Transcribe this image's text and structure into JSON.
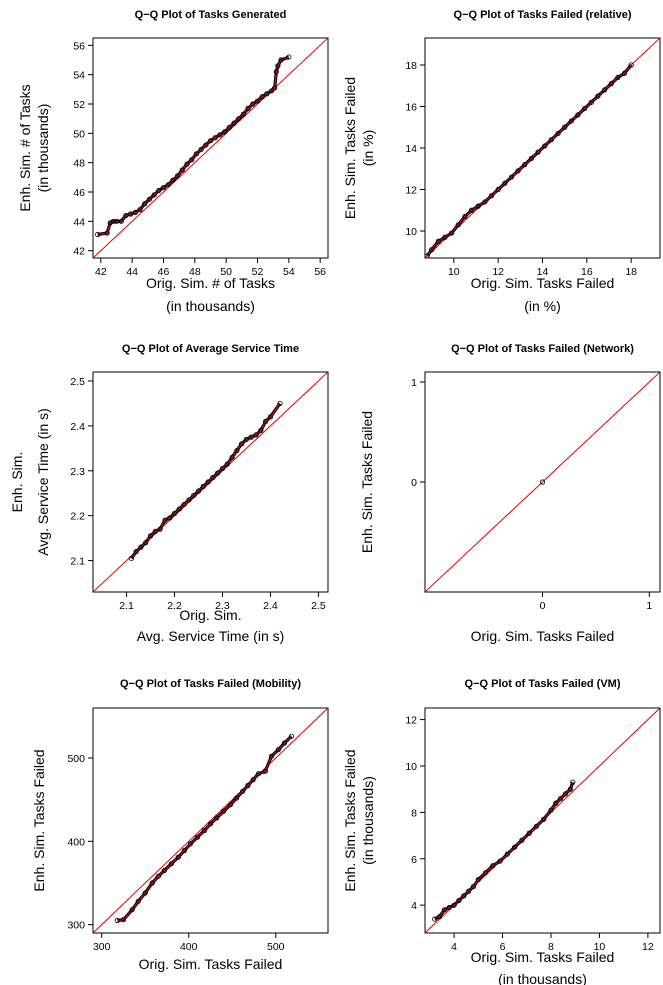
{
  "chart_data": [
    {
      "type": "scatter",
      "title": "Q−Q Plot of Tasks Generated",
      "xlabel": [
        "Orig. Sim. # of Tasks",
        "(in thousands)"
      ],
      "ylabel": [
        "Enh. Sim. # of Tasks",
        "(in thousands)"
      ],
      "xlim": [
        41.5,
        56.5
      ],
      "ylim": [
        41.5,
        56.5
      ],
      "xticks": [
        42,
        44,
        46,
        48,
        50,
        52,
        54,
        56
      ],
      "yticks": [
        42,
        44,
        46,
        48,
        50,
        52,
        54,
        56
      ],
      "reference_line": "y = x",
      "series": [
        {
          "x": [
            41.8,
            42.4,
            42.6,
            42.8,
            43.0,
            43.3,
            43.6,
            43.9,
            44.2,
            44.5,
            44.8,
            45.1,
            45.4,
            45.7,
            46.0,
            46.3,
            46.6,
            46.9,
            47.2,
            47.5,
            47.8,
            48.1,
            48.4,
            48.7,
            49.0,
            49.3,
            49.6,
            49.9,
            50.2,
            50.5,
            50.8,
            51.1,
            51.4,
            51.7,
            52.0,
            52.3,
            52.6,
            52.9,
            53.1,
            53.2,
            53.3,
            53.5,
            54.0
          ],
          "y": [
            43.1,
            43.2,
            43.9,
            44.0,
            44.0,
            44.0,
            44.4,
            44.5,
            44.6,
            44.8,
            45.2,
            45.5,
            45.8,
            46.1,
            46.3,
            46.5,
            46.8,
            47.1,
            47.5,
            47.9,
            48.2,
            48.6,
            48.9,
            49.2,
            49.5,
            49.7,
            49.9,
            50.1,
            50.4,
            50.7,
            51.0,
            51.3,
            51.7,
            52.0,
            52.2,
            52.5,
            52.7,
            52.9,
            53.1,
            54.2,
            54.6,
            55.0,
            55.2
          ]
        }
      ]
    },
    {
      "type": "scatter",
      "title": "Q−Q Plot of Tasks Failed (relative)",
      "xlabel": [
        "Orig. Sim. Tasks Failed",
        "(in %)"
      ],
      "ylabel": [
        "Enh. Sim. Tasks Failed",
        "(in %)"
      ],
      "xlim": [
        8.7,
        19.3
      ],
      "ylim": [
        8.7,
        19.3
      ],
      "xticks": [
        10,
        12,
        14,
        16,
        18
      ],
      "yticks": [
        10,
        12,
        14,
        16,
        18
      ],
      "reference_line": "y = x",
      "series": [
        {
          "x": [
            8.8,
            9.0,
            9.3,
            9.6,
            9.9,
            10.2,
            10.5,
            10.8,
            11.1,
            11.4,
            11.7,
            12.0,
            12.3,
            12.6,
            12.9,
            13.2,
            13.5,
            13.8,
            14.1,
            14.4,
            14.7,
            15.0,
            15.3,
            15.6,
            15.9,
            16.2,
            16.5,
            16.8,
            17.1,
            17.4,
            17.7,
            18.0
          ],
          "y": [
            8.8,
            9.1,
            9.5,
            9.7,
            9.9,
            10.3,
            10.7,
            11.0,
            11.2,
            11.4,
            11.7,
            12.0,
            12.3,
            12.6,
            12.9,
            13.2,
            13.5,
            13.8,
            14.1,
            14.4,
            14.7,
            15.0,
            15.3,
            15.6,
            15.9,
            16.2,
            16.5,
            16.8,
            17.1,
            17.4,
            17.6,
            18.0
          ]
        }
      ]
    },
    {
      "type": "scatter",
      "title": "Q−Q Plot of Average Service Time",
      "xlabel": [
        "Orig. Sim.",
        "Avg. Service Time (in s)"
      ],
      "ylabel": [
        "Enh. Sim.",
        "Avg. Service Time (in s)"
      ],
      "xlim": [
        2.03,
        2.52
      ],
      "ylim": [
        2.03,
        2.52
      ],
      "xticks": [
        2.1,
        2.2,
        2.3,
        2.4,
        2.5
      ],
      "yticks": [
        2.1,
        2.2,
        2.3,
        2.4,
        2.5
      ],
      "reference_line": "y = x",
      "series": [
        {
          "x": [
            2.11,
            2.12,
            2.13,
            2.14,
            2.15,
            2.16,
            2.17,
            2.18,
            2.19,
            2.2,
            2.21,
            2.22,
            2.23,
            2.24,
            2.25,
            2.26,
            2.27,
            2.28,
            2.29,
            2.3,
            2.31,
            2.32,
            2.33,
            2.34,
            2.35,
            2.36,
            2.37,
            2.38,
            2.39,
            2.4,
            2.42
          ],
          "y": [
            2.105,
            2.12,
            2.13,
            2.14,
            2.155,
            2.165,
            2.17,
            2.19,
            2.195,
            2.205,
            2.215,
            2.225,
            2.235,
            2.245,
            2.255,
            2.265,
            2.275,
            2.285,
            2.295,
            2.305,
            2.315,
            2.33,
            2.345,
            2.36,
            2.37,
            2.375,
            2.38,
            2.39,
            2.41,
            2.42,
            2.45
          ]
        }
      ]
    },
    {
      "type": "scatter",
      "title": "Q−Q Plot of Tasks Failed (Network)",
      "xlabel": [
        "Orig. Sim. Tasks Failed"
      ],
      "ylabel": [
        "Enh. Sim. Tasks Failed"
      ],
      "xlim": [
        -1.1,
        1.1
      ],
      "ylim": [
        -1.1,
        1.1
      ],
      "xticks": [
        0,
        1
      ],
      "yticks": [
        0,
        1
      ],
      "reference_line": "y = x",
      "series": [
        {
          "x": [
            0
          ],
          "y": [
            0
          ]
        }
      ]
    },
    {
      "type": "scatter",
      "title": "Q−Q Plot of Tasks Failed (Mobility)",
      "xlabel": [
        "Orig. Sim. Tasks Failed"
      ],
      "ylabel": [
        "Enh. Sim. Tasks Failed"
      ],
      "xlim": [
        290,
        560
      ],
      "ylim": [
        290,
        560
      ],
      "xticks": [
        300,
        400,
        500
      ],
      "yticks": [
        300,
        400,
        500
      ],
      "reference_line": "y = x",
      "series": [
        {
          "x": [
            318,
            325,
            335,
            342,
            350,
            358,
            365,
            372,
            380,
            388,
            395,
            402,
            410,
            418,
            425,
            432,
            440,
            448,
            455,
            462,
            468,
            474,
            480,
            488,
            495,
            503,
            510,
            518
          ],
          "y": [
            305,
            306,
            318,
            328,
            338,
            350,
            358,
            365,
            373,
            381,
            389,
            397,
            405,
            413,
            421,
            428,
            436,
            444,
            452,
            460,
            467,
            474,
            481,
            484,
            502,
            510,
            518,
            526
          ]
        }
      ]
    },
    {
      "type": "scatter",
      "title": "Q−Q Plot of Tasks Failed (VM)",
      "xlabel": [
        "Orig. Sim. Tasks Failed",
        "(in thousands)"
      ],
      "ylabel": [
        "Enh. Sim. Tasks Failed",
        "(in thousands)"
      ],
      "xlim": [
        2.8,
        12.5
      ],
      "ylim": [
        2.8,
        12.5
      ],
      "xticks": [
        4,
        6,
        8,
        10,
        12
      ],
      "yticks": [
        4,
        6,
        8,
        10,
        12
      ],
      "reference_line": "y = x",
      "series": [
        {
          "x": [
            3.2,
            3.4,
            3.6,
            3.8,
            4.0,
            4.2,
            4.4,
            4.6,
            4.8,
            5.0,
            5.3,
            5.6,
            5.9,
            6.2,
            6.5,
            6.8,
            7.1,
            7.4,
            7.7,
            8.0,
            8.2,
            8.4,
            8.6,
            8.8,
            8.9
          ],
          "y": [
            3.4,
            3.5,
            3.8,
            3.9,
            4.0,
            4.2,
            4.4,
            4.6,
            4.8,
            5.1,
            5.4,
            5.7,
            5.9,
            6.2,
            6.5,
            6.8,
            7.1,
            7.4,
            7.7,
            8.1,
            8.4,
            8.6,
            8.8,
            9.0,
            9.3
          ]
        }
      ]
    }
  ]
}
